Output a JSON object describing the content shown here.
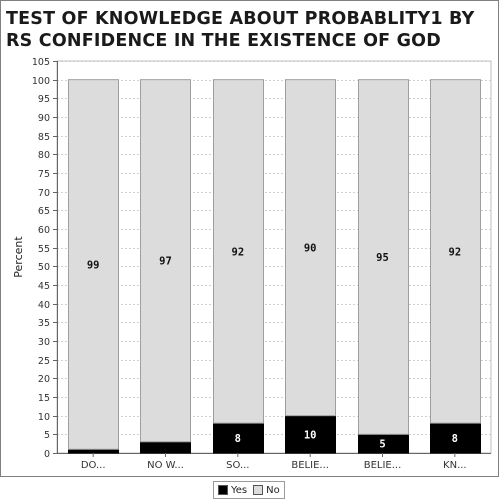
{
  "chart_data": {
    "type": "bar",
    "stacked": true,
    "title": "TEST OF KNOWLEDGE ABOUT PROBABLITY1 BY RS CONFIDENCE IN THE EXISTENCE OF GOD",
    "ylabel": "Percent",
    "xlabel": "",
    "ylim": [
      0,
      105
    ],
    "yticks": [
      0,
      5,
      10,
      15,
      20,
      25,
      30,
      35,
      40,
      45,
      50,
      55,
      60,
      65,
      70,
      75,
      80,
      85,
      90,
      95,
      100,
      105
    ],
    "grid": true,
    "legend_position": "bottom",
    "categories": [
      "DO...",
      "NO W...",
      "SO...",
      "BELIE...",
      "BELIE...",
      "KN..."
    ],
    "series": [
      {
        "name": "Yes",
        "color": "#000000",
        "values": [
          1,
          3,
          8,
          10,
          5,
          8
        ],
        "labels": [
          "",
          "",
          "8",
          "10",
          "5",
          "8"
        ]
      },
      {
        "name": "No",
        "color": "#dcdcdc",
        "values": [
          99,
          97,
          92,
          90,
          95,
          92
        ],
        "labels": [
          "99",
          "97",
          "92",
          "90",
          "95",
          "92"
        ]
      }
    ]
  }
}
